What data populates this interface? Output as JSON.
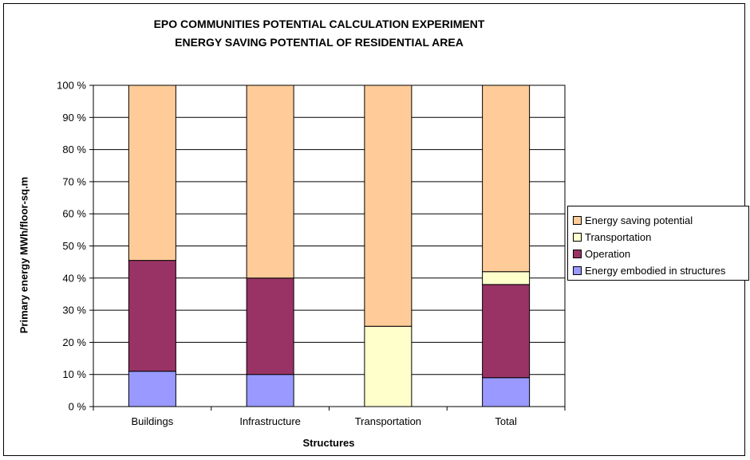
{
  "chart_data": {
    "type": "bar",
    "stacked": true,
    "title": "EPO COMMUNITIES POTENTIAL CALCULATION EXPERIMENT",
    "subtitle": "ENERGY SAVING POTENTIAL OF RESIDENTIAL AREA",
    "xlabel": "Structures",
    "ylabel": "Primary energy MWh/floor-sq.m",
    "ylim": [
      0,
      100
    ],
    "yticks": [
      0,
      10,
      20,
      30,
      40,
      50,
      60,
      70,
      80,
      90,
      100
    ],
    "ytick_labels": [
      "0 %",
      "10 %",
      "20 %",
      "30 %",
      "40 %",
      "50 %",
      "60 %",
      "70 %",
      "80 %",
      "90 %",
      "100 %"
    ],
    "grid": "horizontal",
    "legend_position": "right",
    "categories": [
      "Buildings",
      "Infrastructure",
      "Transportation",
      "Total"
    ],
    "series": [
      {
        "name": "Energy embodied in structures",
        "color": "#9999ff",
        "values": [
          11,
          10,
          0,
          9
        ]
      },
      {
        "name": "Operation",
        "color": "#993366",
        "values": [
          34.5,
          30,
          0,
          29
        ]
      },
      {
        "name": "Transportation",
        "color": "#ffffcc",
        "values": [
          0,
          0,
          25,
          4
        ]
      },
      {
        "name": "Energy saving potential",
        "color": "#ffcc99",
        "values": [
          54.5,
          60,
          75,
          58
        ]
      }
    ],
    "legend_order": [
      "Energy saving potential",
      "Transportation",
      "Operation",
      "Energy embodied in structures"
    ]
  }
}
